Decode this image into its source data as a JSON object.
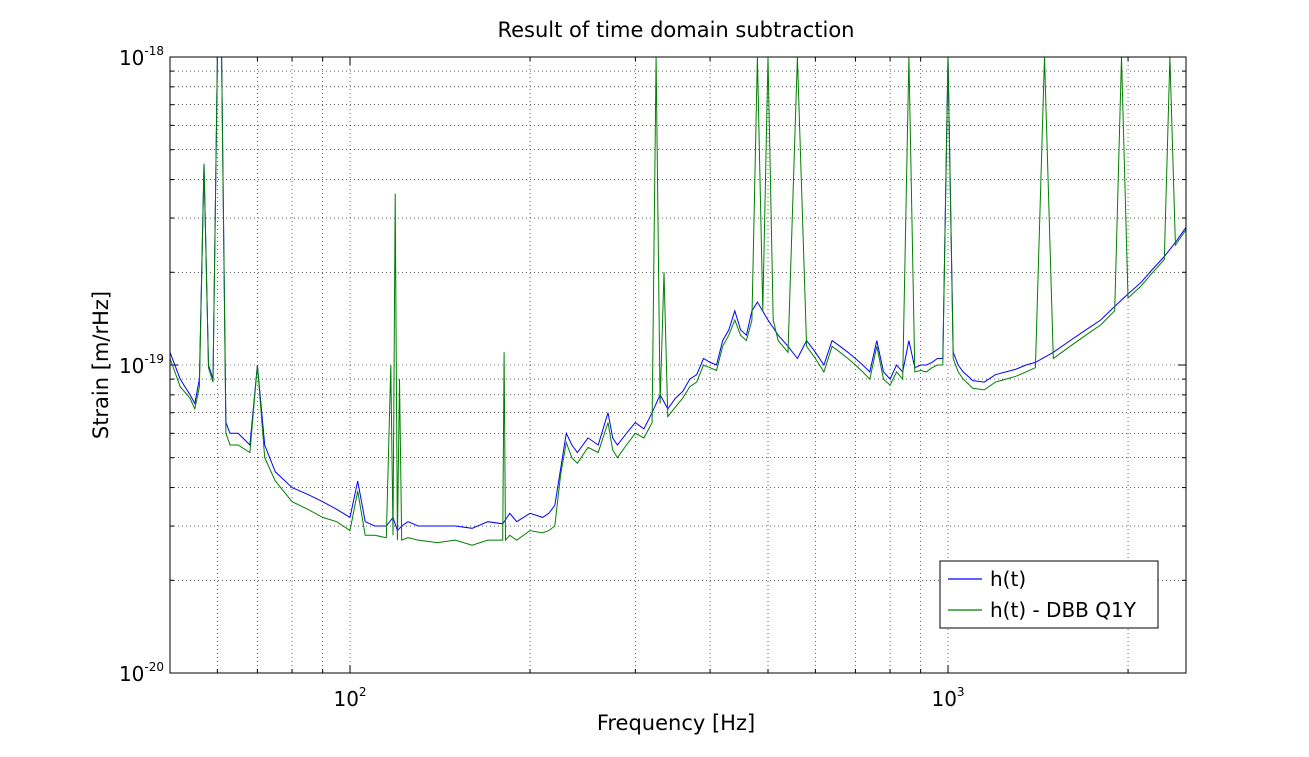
{
  "chart_data": {
    "type": "line",
    "title": "Result of time domain subtraction",
    "xlabel": "Frequency [Hz]",
    "ylabel": "Strain [m/rHz]",
    "xscale": "log",
    "yscale": "log",
    "xlim": [
      50,
      2500
    ],
    "ylim": [
      1e-20,
      1e-18
    ],
    "grid": true,
    "legend_position": "bottom-right",
    "x_ticks": [
      {
        "base": "10",
        "exp": "2",
        "value": 100
      },
      {
        "base": "10",
        "exp": "3",
        "value": 1000
      }
    ],
    "y_ticks": [
      {
        "base": "10",
        "exp": "-18",
        "value": 1e-18
      },
      {
        "base": "10",
        "exp": "-19",
        "value": 1e-19
      },
      {
        "base": "10",
        "exp": "-20",
        "value": 1e-20
      }
    ],
    "series": [
      {
        "name": "h(t)",
        "color": "#0000ff",
        "x": [
          50,
          52,
          54,
          55,
          56,
          57,
          58,
          59,
          60,
          61,
          62,
          63,
          65,
          68,
          70,
          72,
          75,
          80,
          85,
          90,
          95,
          100,
          103,
          106,
          110,
          115,
          118,
          120,
          122,
          125,
          130,
          140,
          150,
          160,
          170,
          180,
          185,
          190,
          200,
          210,
          215,
          220,
          225,
          230,
          235,
          240,
          250,
          260,
          270,
          275,
          280,
          290,
          300,
          310,
          320,
          330,
          340,
          350,
          360,
          370,
          380,
          390,
          400,
          410,
          420,
          430,
          440,
          450,
          460,
          470,
          480,
          500,
          520,
          540,
          560,
          580,
          600,
          620,
          640,
          660,
          680,
          700,
          720,
          740,
          760,
          780,
          800,
          820,
          840,
          860,
          880,
          900,
          920,
          940,
          960,
          980,
          1000,
          1020,
          1040,
          1060,
          1080,
          1100,
          1150,
          1200,
          1250,
          1300,
          1350,
          1400,
          1500,
          1600,
          1700,
          1800,
          1900,
          2000,
          2100,
          2200,
          2300,
          2400,
          2500
        ],
        "y": [
          1.1e-19,
          9e-20,
          8e-20,
          7.5e-20,
          9e-20,
          4.5e-19,
          1e-19,
          9e-20,
          1e-18,
          1e-18,
          6.5e-20,
          6e-20,
          6e-20,
          5.5e-20,
          1e-19,
          5.5e-20,
          4.5e-20,
          4e-20,
          3.8e-20,
          3.6e-20,
          3.4e-20,
          3.2e-20,
          4.2e-20,
          3.1e-20,
          3e-20,
          3e-20,
          3.2e-20,
          2.9e-20,
          3e-20,
          3.1e-20,
          3e-20,
          3e-20,
          3e-20,
          2.95e-20,
          3.1e-20,
          3.05e-20,
          3.3e-20,
          3.1e-20,
          3.3e-20,
          3.2e-20,
          3.3e-20,
          3.5e-20,
          4.6e-20,
          6e-20,
          5.5e-20,
          5.2e-20,
          5.8e-20,
          5.5e-20,
          7e-20,
          5.8e-20,
          5.5e-20,
          6e-20,
          6.5e-20,
          6.2e-20,
          7e-20,
          8e-20,
          7.2e-20,
          7.8e-20,
          8.2e-20,
          9e-20,
          9.3e-20,
          1.05e-19,
          1.02e-19,
          1e-19,
          1.2e-19,
          1.3e-19,
          1.5e-19,
          1.3e-19,
          1.25e-19,
          1.5e-19,
          1.6e-19,
          1.4e-19,
          1.25e-19,
          1.15e-19,
          1.05e-19,
          1.2e-19,
          1.1e-19,
          1e-19,
          1.2e-19,
          1.15e-19,
          1.1e-19,
          1.05e-19,
          1e-19,
          9.5e-20,
          1.2e-19,
          9.5e-20,
          9e-20,
          1e-19,
          9.5e-20,
          1.2e-19,
          9.8e-20,
          1e-19,
          1e-19,
          1.02e-19,
          1.05e-19,
          1.05e-19,
          1e-18,
          1.1e-19,
          1e-19,
          9.5e-20,
          9.2e-20,
          8.9e-20,
          8.8e-20,
          9.3e-20,
          9.5e-20,
          9.7e-20,
          1e-19,
          1.02e-19,
          1.1e-19,
          1.2e-19,
          1.3e-19,
          1.4e-19,
          1.55e-19,
          1.7e-19,
          1.85e-19,
          2.05e-19,
          2.25e-19,
          2.5e-19,
          2.8e-19
        ]
      },
      {
        "name": "h(t) - DBB Q1Y",
        "color": "#007f00",
        "x": [
          50,
          52,
          54,
          55,
          56,
          57,
          58,
          59,
          60,
          61,
          62,
          63,
          65,
          68,
          70,
          72,
          75,
          80,
          85,
          90,
          95,
          100,
          103,
          106,
          110,
          115,
          117,
          118,
          119,
          120,
          121,
          122,
          125,
          130,
          140,
          150,
          160,
          170,
          180,
          181,
          182,
          185,
          190,
          200,
          210,
          215,
          220,
          225,
          230,
          235,
          240,
          250,
          260,
          270,
          275,
          280,
          290,
          300,
          310,
          320,
          325,
          330,
          335,
          340,
          350,
          360,
          370,
          380,
          390,
          400,
          410,
          420,
          430,
          440,
          450,
          460,
          470,
          480,
          490,
          500,
          510,
          520,
          540,
          560,
          580,
          600,
          620,
          640,
          660,
          680,
          700,
          720,
          740,
          760,
          780,
          800,
          820,
          840,
          860,
          880,
          900,
          920,
          940,
          960,
          980,
          1000,
          1020,
          1040,
          1060,
          1080,
          1100,
          1150,
          1200,
          1250,
          1300,
          1350,
          1400,
          1450,
          1500,
          1600,
          1700,
          1800,
          1900,
          1950,
          2000,
          2100,
          2200,
          2300,
          2350,
          2400,
          2500
        ],
        "y": [
          1.05e-19,
          8.5e-20,
          7.8e-20,
          7.2e-20,
          8.5e-20,
          4.5e-19,
          9.8e-20,
          8.8e-20,
          1e-18,
          1e-18,
          6e-20,
          5.5e-20,
          5.5e-20,
          5.2e-20,
          1e-19,
          5e-20,
          4.2e-20,
          3.6e-20,
          3.4e-20,
          3.2e-20,
          3.1e-20,
          2.9e-20,
          3.9e-20,
          2.8e-20,
          2.8e-20,
          2.75e-20,
          1e-19,
          2.8e-20,
          3.6e-19,
          2.7e-20,
          9e-20,
          2.7e-20,
          2.75e-20,
          2.7e-20,
          2.65e-20,
          2.7e-20,
          2.6e-20,
          2.7e-20,
          2.7e-20,
          1.1e-19,
          2.7e-20,
          2.8e-20,
          2.7e-20,
          2.9e-20,
          2.85e-20,
          2.9e-20,
          3e-20,
          4.4e-20,
          5.6e-20,
          5e-20,
          4.8e-20,
          5.4e-20,
          5.2e-20,
          6.5e-20,
          5.3e-20,
          5e-20,
          5.5e-20,
          6e-20,
          5.8e-20,
          6.5e-20,
          1e-18,
          7.5e-20,
          2e-19,
          6.8e-20,
          7.3e-20,
          7.8e-20,
          8.5e-20,
          8.8e-20,
          1e-19,
          9.8e-20,
          9.6e-20,
          1.15e-19,
          1.25e-19,
          1.4e-19,
          1.25e-19,
          1.2e-19,
          1.4e-19,
          1e-18,
          1.5e-19,
          1e-18,
          1.4e-19,
          1.2e-19,
          1.1e-19,
          1e-18,
          1.15e-19,
          1.05e-19,
          9.5e-20,
          1.15e-19,
          1.1e-19,
          1.05e-19,
          1e-19,
          9.5e-20,
          9e-20,
          1.15e-19,
          9e-20,
          8.6e-20,
          9.5e-20,
          9e-20,
          1e-18,
          9.5e-20,
          9.6e-20,
          9.5e-20,
          9.8e-20,
          1e-19,
          1e-19,
          1e-18,
          1.05e-19,
          9.5e-20,
          9e-20,
          8.7e-20,
          8.4e-20,
          8.3e-20,
          8.8e-20,
          9e-20,
          9.2e-20,
          9.5e-20,
          9.8e-20,
          1e-18,
          1.05e-19,
          1.15e-19,
          1.25e-19,
          1.35e-19,
          1.5e-19,
          1e-18,
          1.65e-19,
          1.8e-19,
          2e-19,
          2.2e-19,
          1e-18,
          2.45e-19,
          2.75e-19
        ]
      }
    ]
  }
}
